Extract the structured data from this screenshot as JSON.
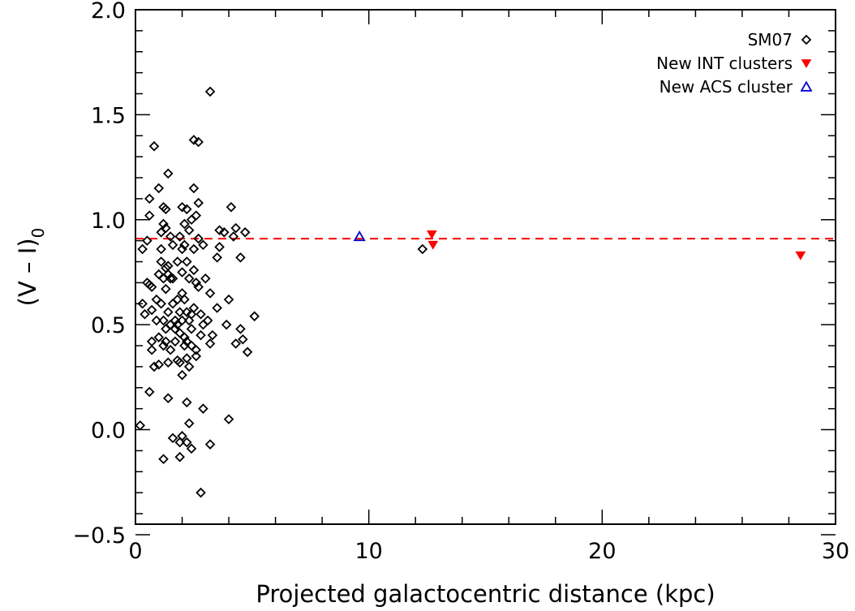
{
  "chart_data": {
    "type": "scatter",
    "xlabel": "Projected galactocentric distance (kpc)",
    "ylabel": {
      "main": "(V – I)",
      "subscript": "0"
    },
    "xlim": [
      0,
      30
    ],
    "ylim": [
      -0.45,
      2.0
    ],
    "xticks": [
      0,
      10,
      20,
      30
    ],
    "xtick_labels": [
      "0",
      "10",
      "20",
      "30"
    ],
    "yticks": [
      -0.5,
      0.0,
      0.5,
      1.0,
      1.5,
      2.0
    ],
    "ytick_labels": [
      "−0.5",
      "0.0",
      "0.5",
      "1.0",
      "1.5",
      "2.0"
    ],
    "grid": false,
    "legend_position": "top-right",
    "reference_line": {
      "y": 0.91,
      "style": "dashed",
      "color": "#ff0000"
    },
    "colors": {
      "SM07": "#000000",
      "INT": "#ff0000",
      "ACS": "#0000cc"
    },
    "series": [
      {
        "name": "SM07",
        "marker": "diamond",
        "points": [
          [
            0.2,
            0.02
          ],
          [
            0.3,
            0.86
          ],
          [
            0.3,
            0.6
          ],
          [
            0.4,
            0.55
          ],
          [
            0.5,
            0.9
          ],
          [
            0.5,
            0.7
          ],
          [
            0.6,
            0.69
          ],
          [
            0.6,
            0.18
          ],
          [
            0.6,
            1.02
          ],
          [
            0.6,
            1.1
          ],
          [
            0.7,
            0.68
          ],
          [
            0.7,
            0.57
          ],
          [
            0.7,
            0.42
          ],
          [
            0.7,
            0.38
          ],
          [
            0.8,
            1.35
          ],
          [
            0.8,
            0.3
          ],
          [
            0.9,
            0.62
          ],
          [
            0.9,
            0.52
          ],
          [
            1.0,
            1.15
          ],
          [
            1.0,
            0.74
          ],
          [
            1.0,
            0.44
          ],
          [
            1.0,
            0.31
          ],
          [
            1.1,
            0.94
          ],
          [
            1.1,
            0.86
          ],
          [
            1.1,
            0.8
          ],
          [
            1.1,
            0.6
          ],
          [
            1.2,
            1.06
          ],
          [
            1.2,
            0.98
          ],
          [
            1.2,
            0.72
          ],
          [
            1.2,
            0.52
          ],
          [
            1.2,
            0.4
          ],
          [
            1.2,
            -0.14
          ],
          [
            1.3,
            1.05
          ],
          [
            1.3,
            0.96
          ],
          [
            1.3,
            0.77
          ],
          [
            1.3,
            0.67
          ],
          [
            1.3,
            0.48
          ],
          [
            1.3,
            0.42
          ],
          [
            1.4,
            1.22
          ],
          [
            1.4,
            0.78
          ],
          [
            1.4,
            0.74
          ],
          [
            1.4,
            0.56
          ],
          [
            1.4,
            0.32
          ],
          [
            1.4,
            0.15
          ],
          [
            1.5,
            0.92
          ],
          [
            1.5,
            0.72
          ],
          [
            1.5,
            0.5
          ],
          [
            1.5,
            0.38
          ],
          [
            1.6,
            0.88
          ],
          [
            1.6,
            0.72
          ],
          [
            1.6,
            0.6
          ],
          [
            1.6,
            -0.04
          ],
          [
            1.7,
            0.52
          ],
          [
            1.7,
            0.48
          ],
          [
            1.7,
            0.42
          ],
          [
            1.8,
            0.8
          ],
          [
            1.8,
            0.62
          ],
          [
            1.8,
            0.5
          ],
          [
            1.8,
            0.33
          ],
          [
            1.9,
            0.92
          ],
          [
            1.9,
            0.56
          ],
          [
            1.9,
            0.46
          ],
          [
            1.9,
            0.32
          ],
          [
            1.9,
            -0.13
          ],
          [
            1.9,
            -0.06
          ],
          [
            2.0,
            1.06
          ],
          [
            2.0,
            0.86
          ],
          [
            2.0,
            0.75
          ],
          [
            2.0,
            0.65
          ],
          [
            2.0,
            0.52
          ],
          [
            2.0,
            0.26
          ],
          [
            2.0,
            -0.03
          ],
          [
            2.1,
            0.98
          ],
          [
            2.1,
            0.88
          ],
          [
            2.1,
            0.62
          ],
          [
            2.1,
            0.44
          ],
          [
            2.1,
            0.4
          ],
          [
            2.2,
            1.05
          ],
          [
            2.2,
            0.8
          ],
          [
            2.2,
            0.56
          ],
          [
            2.2,
            0.42
          ],
          [
            2.2,
            0.34
          ],
          [
            2.2,
            0.13
          ],
          [
            2.2,
            -0.06
          ],
          [
            2.3,
            0.95
          ],
          [
            2.3,
            0.72
          ],
          [
            2.3,
            0.52
          ],
          [
            2.3,
            0.3
          ],
          [
            2.3,
            0.03
          ],
          [
            2.4,
            1.0
          ],
          [
            2.4,
            0.55
          ],
          [
            2.4,
            0.48
          ],
          [
            2.4,
            0.4
          ],
          [
            2.4,
            -0.09
          ],
          [
            2.5,
            1.38
          ],
          [
            2.5,
            1.15
          ],
          [
            2.5,
            0.86
          ],
          [
            2.5,
            0.76
          ],
          [
            2.5,
            0.58
          ],
          [
            2.6,
            1.02
          ],
          [
            2.6,
            0.7
          ],
          [
            2.6,
            0.38
          ],
          [
            2.6,
            0.35
          ],
          [
            2.7,
            1.37
          ],
          [
            2.7,
            1.08
          ],
          [
            2.7,
            0.91
          ],
          [
            2.7,
            0.68
          ],
          [
            2.8,
            0.55
          ],
          [
            2.8,
            0.45
          ],
          [
            2.8,
            -0.3
          ],
          [
            2.9,
            0.88
          ],
          [
            2.9,
            0.5
          ],
          [
            2.9,
            0.1
          ],
          [
            3.0,
            0.72
          ],
          [
            3.1,
            0.52
          ],
          [
            3.2,
            1.61
          ],
          [
            3.2,
            0.65
          ],
          [
            3.2,
            0.41
          ],
          [
            3.2,
            -0.07
          ],
          [
            3.3,
            0.45
          ],
          [
            3.5,
            0.82
          ],
          [
            3.5,
            0.58
          ],
          [
            3.6,
            0.95
          ],
          [
            3.6,
            0.87
          ],
          [
            3.8,
            0.94
          ],
          [
            3.9,
            0.5
          ],
          [
            4.0,
            0.62
          ],
          [
            4.0,
            0.05
          ],
          [
            4.1,
            1.06
          ],
          [
            4.2,
            0.92
          ],
          [
            4.3,
            0.96
          ],
          [
            4.3,
            0.41
          ],
          [
            4.5,
            0.48
          ],
          [
            4.5,
            0.82
          ],
          [
            4.6,
            0.43
          ],
          [
            4.7,
            0.94
          ],
          [
            4.8,
            0.37
          ],
          [
            5.1,
            0.54
          ],
          [
            12.3,
            0.86
          ]
        ]
      },
      {
        "name": "New INT clusters",
        "marker": "filled-down-triangle",
        "points": [
          [
            12.7,
            0.93
          ],
          [
            12.75,
            0.88
          ],
          [
            28.5,
            0.83
          ]
        ]
      },
      {
        "name": "New ACS cluster",
        "marker": "open-triangle",
        "points": [
          [
            9.6,
            0.92
          ]
        ]
      }
    ]
  }
}
